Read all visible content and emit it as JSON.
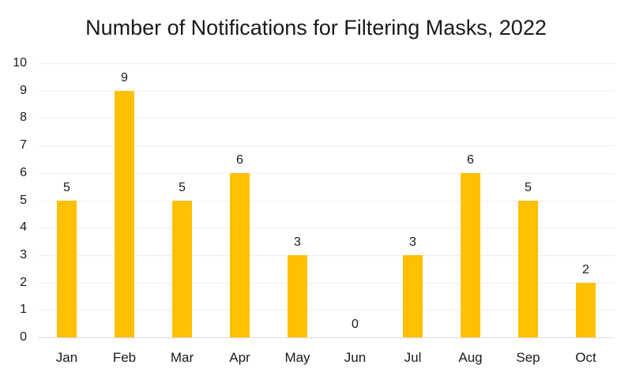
{
  "chart_data": {
    "type": "bar",
    "title": "Number of Notifications for Filtering Masks, 2022",
    "categories": [
      "Jan",
      "Feb",
      "Mar",
      "Apr",
      "May",
      "Jun",
      "Jul",
      "Aug",
      "Sep",
      "Oct"
    ],
    "values": [
      5,
      9,
      5,
      6,
      3,
      0,
      3,
      6,
      5,
      2
    ],
    "xlabel": "",
    "ylabel": "",
    "ylim": [
      0,
      10
    ],
    "yticks": [
      0,
      1,
      2,
      3,
      4,
      5,
      6,
      7,
      8,
      9,
      10
    ],
    "data_labels": [
      5,
      9,
      5,
      6,
      3,
      0,
      3,
      6,
      5,
      2
    ],
    "grid": "horizontal",
    "legend": "none",
    "colors": {
      "bar": "#FFC000",
      "text": "#1a1a1a",
      "axis_line": "#D9D9D9",
      "gridline": "#EFEFEF",
      "background": "#FFFFFF"
    }
  }
}
